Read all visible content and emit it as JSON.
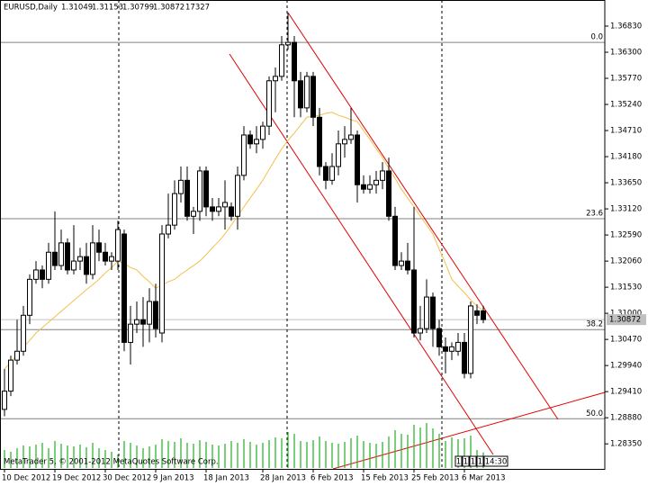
{
  "chart_data": {
    "type": "candlestick",
    "symbol": "EURUSD,Daily",
    "categories": [
      "10 Dec 2012",
      null,
      null,
      null,
      null,
      null,
      null,
      null,
      "19 Dec 2012",
      null,
      null,
      null,
      null,
      null,
      null,
      null,
      "30 Dec 2012",
      null,
      null,
      null,
      null,
      null,
      null,
      null,
      "9 Jan 2013",
      null,
      null,
      null,
      null,
      null,
      null,
      null,
      "18 Jan 2013",
      null,
      null,
      null,
      null,
      null,
      null,
      null,
      null,
      "28 Jan 2013",
      null,
      null,
      null,
      null,
      null,
      null,
      null,
      "6 Feb 2013",
      null,
      null,
      null,
      null,
      null,
      null,
      null,
      "15 Feb 2013",
      null,
      null,
      null,
      null,
      null,
      null,
      null,
      "25 Feb 2013",
      null,
      null,
      null,
      null,
      null,
      null,
      null,
      "6 Mar 2013",
      null,
      null,
      null
    ],
    "open": [
      1.2905,
      1.2942,
      1.3005,
      1.3023,
      1.3096,
      1.3169,
      1.3188,
      1.3169,
      1.3224,
      1.3197,
      1.3243,
      1.3188,
      1.3206,
      1.3215,
      1.3179,
      1.3243,
      1.3224,
      1.3206,
      1.3206,
      1.3261,
      1.3041,
      1.3078,
      1.3087,
      1.3078,
      1.3124,
      1.306,
      1.3261,
      1.3279,
      1.3343,
      1.337,
      1.3297,
      1.3307,
      1.3389,
      1.3316,
      1.3307,
      1.3316,
      1.3316,
      1.3297,
      1.338,
      1.3462,
      1.3444,
      1.3453,
      1.348,
      1.3572,
      1.3581,
      1.3645,
      1.365,
      1.3572,
      1.3517,
      1.3581,
      1.3498,
      1.3398,
      1.337,
      1.3398,
      1.3444,
      1.3453,
      1.3462,
      1.3361,
      1.3352,
      1.3361,
      1.337,
      1.3389,
      1.3297,
      1.3197,
      1.3206,
      1.3188,
      1.306,
      1.3069,
      1.3133,
      1.3069,
      1.3032,
      1.3023,
      1.3023,
      1.3041,
      1.2978,
      1.3105,
      1.31049
    ],
    "high": [
      1.2987,
      1.3014,
      1.3087,
      1.3115,
      1.3179,
      1.3206,
      1.3197,
      1.3243,
      1.3307,
      1.327,
      1.3252,
      1.3279,
      1.3233,
      1.3243,
      1.3279,
      1.327,
      1.3243,
      1.3224,
      1.3288,
      1.327,
      1.3115,
      1.3124,
      1.3133,
      1.3151,
      1.316,
      1.3279,
      1.3343,
      1.337,
      1.3398,
      1.3398,
      1.3316,
      1.3398,
      1.3398,
      1.3334,
      1.3334,
      1.337,
      1.3325,
      1.3398,
      1.348,
      1.3471,
      1.348,
      1.3489,
      1.3581,
      1.3599,
      1.3663,
      1.371,
      1.3663,
      1.359,
      1.359,
      1.359,
      1.3517,
      1.3407,
      1.3425,
      1.3471,
      1.348,
      1.3517,
      1.3471,
      1.338,
      1.338,
      1.3389,
      1.3407,
      1.3416,
      1.3316,
      1.3224,
      1.3243,
      1.3316,
      1.3115,
      1.3169,
      1.3142,
      1.3087,
      1.3051,
      1.3041,
      1.306,
      1.306,
      1.3124,
      1.3118,
      1.31153
    ],
    "low": [
      1.2891,
      1.2932,
      1.2996,
      1.3014,
      1.3078,
      1.316,
      1.3151,
      1.316,
      1.3188,
      1.3188,
      1.3179,
      1.3179,
      1.3188,
      1.316,
      1.3169,
      1.3206,
      1.3197,
      1.3188,
      1.3188,
      1.3023,
      1.2996,
      1.306,
      1.3032,
      1.3041,
      1.3051,
      1.3041,
      1.3252,
      1.327,
      1.3325,
      1.3288,
      1.3261,
      1.3288,
      1.3297,
      1.3288,
      1.3297,
      1.327,
      1.3288,
      1.327,
      1.337,
      1.3434,
      1.3425,
      1.3434,
      1.3462,
      1.3508,
      1.3572,
      1.3635,
      1.3498,
      1.3498,
      1.3508,
      1.348,
      1.338,
      1.3352,
      1.3361,
      1.338,
      1.3416,
      1.3444,
      1.3325,
      1.3343,
      1.3343,
      1.3343,
      1.3352,
      1.3288,
      1.3188,
      1.3188,
      1.3179,
      1.3051,
      1.3045,
      1.306,
      1.3032,
      1.3014,
      1.2978,
      1.3005,
      1.3014,
      1.2968,
      1.2968,
      1.3078,
      1.30799
    ],
    "close": [
      1.2942,
      1.3005,
      1.3023,
      1.3096,
      1.3169,
      1.3188,
      1.3169,
      1.3224,
      1.3197,
      1.3243,
      1.3188,
      1.3206,
      1.3215,
      1.3179,
      1.3243,
      1.3224,
      1.3206,
      1.3215,
      1.327,
      1.3041,
      1.3078,
      1.3087,
      1.3078,
      1.3124,
      1.3069,
      1.3261,
      1.3279,
      1.3343,
      1.337,
      1.3297,
      1.3307,
      1.3389,
      1.3316,
      1.3307,
      1.3316,
      1.3325,
      1.3297,
      1.338,
      1.3462,
      1.3444,
      1.3453,
      1.348,
      1.3572,
      1.3581,
      1.3645,
      1.365,
      1.3572,
      1.3517,
      1.3581,
      1.3498,
      1.3398,
      1.337,
      1.3398,
      1.3444,
      1.3453,
      1.3462,
      1.3361,
      1.3352,
      1.3361,
      1.337,
      1.3389,
      1.3297,
      1.3197,
      1.3206,
      1.3188,
      1.306,
      1.3069,
      1.3133,
      1.3069,
      1.3032,
      1.3023,
      1.3032,
      1.3041,
      1.2978,
      1.3115,
      1.3096,
      1.30872
    ],
    "moving_average": {
      "color": "#f2c14e",
      "values": [
        1.2987,
        1.3001,
        1.3016,
        1.3031,
        1.3045,
        1.306,
        1.3071,
        1.3082,
        1.3093,
        1.3104,
        1.3115,
        1.3126,
        1.3137,
        1.3148,
        1.3158,
        1.3169,
        1.3182,
        1.3193,
        1.3206,
        1.3201,
        1.3193,
        1.3188,
        1.3175,
        1.3164,
        1.3151,
        1.3157,
        1.3164,
        1.3169,
        1.3179,
        1.3188,
        1.3197,
        1.3206,
        1.3219,
        1.3233,
        1.3246,
        1.3261,
        1.3279,
        1.3297,
        1.3316,
        1.3334,
        1.3352,
        1.337,
        1.3392,
        1.3413,
        1.3434,
        1.3451,
        1.3466,
        1.3482,
        1.3498,
        1.35,
        1.3502,
        1.3506,
        1.3508,
        1.3502,
        1.3498,
        1.3493,
        1.3489,
        1.3471,
        1.3453,
        1.3434,
        1.3416,
        1.3394,
        1.3374,
        1.3352,
        1.3334,
        1.3316,
        1.3297,
        1.3279,
        1.3261,
        1.323,
        1.3201,
        1.3169,
        1.3155,
        1.3142,
        1.3127,
        1.3115,
        1.3105
      ]
    },
    "volume": {
      "color": "#22b022",
      "values": [
        20000,
        18000,
        22000,
        25000,
        24000,
        26000,
        28000,
        22000,
        30000,
        27000,
        25000,
        24000,
        26000,
        23000,
        28000,
        22000,
        20000,
        18000,
        15000,
        30000,
        28000,
        25000,
        22000,
        24000,
        26000,
        32000,
        30000,
        29000,
        33000,
        28000,
        27000,
        31000,
        29000,
        26000,
        25000,
        27000,
        30000,
        28000,
        32000,
        29000,
        26000,
        28000,
        31000,
        34000,
        33000,
        40000,
        38000,
        30000,
        29000,
        31000,
        35000,
        30000,
        28000,
        27000,
        29000,
        33000,
        36000,
        30000,
        28000,
        27000,
        29000,
        35000,
        42000,
        38000,
        37000,
        48000,
        45000,
        50000,
        44000,
        38000,
        30000,
        34000,
        32000,
        33000,
        36000,
        20000,
        17327
      ]
    },
    "ylim": [
      1.2786,
      1.3736
    ],
    "yticks": [
      {
        "value": 1.3683,
        "label": "1.36830"
      },
      {
        "value": 1.363,
        "label": "1.36300"
      },
      {
        "value": 1.3577,
        "label": "1.35770"
      },
      {
        "value": 1.3524,
        "label": "1.35240"
      },
      {
        "value": 1.3471,
        "label": "1.34710"
      },
      {
        "value": 1.3418,
        "label": "1.34180"
      },
      {
        "value": 1.3365,
        "label": "1.33650"
      },
      {
        "value": 1.3312,
        "label": "1.33120"
      },
      {
        "value": 1.3259,
        "label": "1.32590"
      },
      {
        "value": 1.3206,
        "label": "1.32060"
      },
      {
        "value": 1.3153,
        "label": "1.31530"
      },
      {
        "value": 1.31,
        "label": "1.31000"
      },
      {
        "value": 1.3047,
        "label": "1.30470"
      },
      {
        "value": 1.2994,
        "label": "1.29940"
      },
      {
        "value": 1.2941,
        "label": "1.29410"
      },
      {
        "value": 1.2888,
        "label": "1.28880"
      },
      {
        "value": 1.2835,
        "label": "1.28350"
      }
    ],
    "fibo_levels": [
      {
        "label": "0.0",
        "value": 1.365
      },
      {
        "label": "23.6",
        "value": 1.3292
      },
      {
        "label": "38.2",
        "value": 1.3067
      },
      {
        "label": "50.0",
        "value": 1.2886
      }
    ],
    "copyright": "MetaTrader 5, © 2001-2012 MetaQuotes Software Corp.",
    "timer_boxes": [
      "1",
      "1",
      "1",
      "1",
      "14:30"
    ]
  }
}
